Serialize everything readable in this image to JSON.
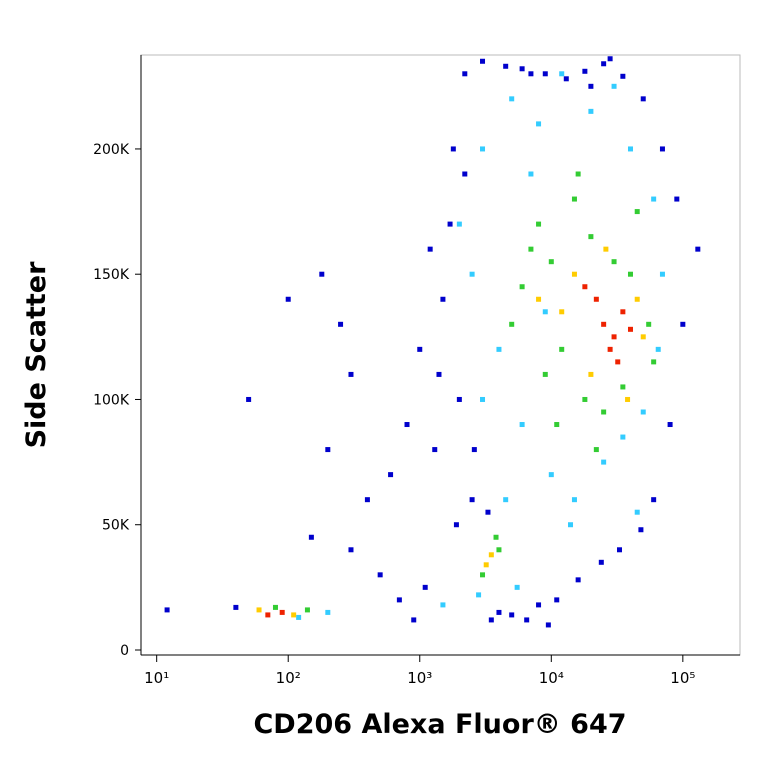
{
  "chart_data": {
    "type": "scatter",
    "x_label": "CD206 Alexa Fluor® 647",
    "y_label": "Side Scatter",
    "x_scale": "log",
    "xlim": [
      7.6,
      272000
    ],
    "xticks": [
      {
        "value": 10,
        "label": "10¹"
      },
      {
        "value": 100,
        "label": "10²"
      },
      {
        "value": 1000,
        "label": "10³"
      },
      {
        "value": 10000,
        "label": "10⁴"
      },
      {
        "value": 100000,
        "label": "10⁵"
      }
    ],
    "ylim": [
      -2000,
      237500
    ],
    "yticks": [
      0,
      {
        "value": 50000,
        "label": "50K"
      },
      {
        "value": 100000,
        "label": "100K"
      },
      {
        "value": 150000,
        "label": "150K"
      },
      {
        "value": 200000,
        "label": "200K"
      }
    ],
    "series": [
      {
        "color": "#0000cc",
        "x": [
          1200,
          1800,
          2200,
          3000,
          4500,
          6000,
          9000,
          13000,
          18000,
          25000,
          35000,
          50000,
          70000,
          90000,
          1000,
          1500,
          800,
          600,
          400,
          300,
          200,
          150,
          100,
          50,
          40,
          12,
          500,
          700,
          900,
          1100,
          1300,
          2000,
          2500,
          4000,
          6500,
          11000,
          16000,
          24000,
          33000,
          48000,
          60000,
          80000,
          100000,
          130000,
          3500,
          5000,
          8000,
          7000,
          20000,
          28000,
          2200,
          1700,
          1400,
          1900,
          2600,
          3300,
          9500,
          300,
          250,
          180
        ],
        "values": [
          160000,
          200000,
          230000,
          235000,
          233000,
          232000,
          230000,
          228000,
          231000,
          234000,
          229000,
          220000,
          200000,
          180000,
          120000,
          140000,
          90000,
          70000,
          60000,
          110000,
          80000,
          45000,
          140000,
          100000,
          17000,
          16000,
          30000,
          20000,
          12000,
          25000,
          80000,
          100000,
          60000,
          15000,
          12000,
          20000,
          28000,
          35000,
          40000,
          48000,
          60000,
          90000,
          130000,
          160000,
          12000,
          14000,
          18000,
          230000,
          225000,
          236000,
          190000,
          170000,
          110000,
          50000,
          80000,
          55000,
          10000,
          40000,
          130000,
          150000
        ]
      },
      {
        "color": "#33ccff",
        "x": [
          3000,
          5000,
          8000,
          12000,
          20000,
          40000,
          60000,
          70000,
          2500,
          4000,
          6000,
          10000,
          15000,
          25000,
          35000,
          50000,
          3000,
          7000,
          9000,
          30000,
          2000,
          4500,
          14000,
          45000,
          65000,
          5500,
          2800,
          1500,
          200,
          120
        ],
        "values": [
          200000,
          220000,
          210000,
          230000,
          215000,
          200000,
          180000,
          150000,
          150000,
          120000,
          90000,
          70000,
          60000,
          75000,
          85000,
          95000,
          100000,
          190000,
          135000,
          225000,
          170000,
          60000,
          50000,
          55000,
          120000,
          25000,
          22000,
          18000,
          15000,
          13000
        ]
      },
      {
        "color": "#33cc33",
        "x": [
          8000,
          10000,
          15000,
          6000,
          20000,
          30000,
          40000,
          55000,
          12000,
          5000,
          9000,
          18000,
          25000,
          35000,
          7000,
          4000,
          3000,
          3800,
          80,
          140,
          60000,
          16000,
          22000,
          11000,
          45000
        ],
        "values": [
          170000,
          155000,
          180000,
          145000,
          165000,
          155000,
          150000,
          130000,
          120000,
          130000,
          110000,
          100000,
          95000,
          105000,
          160000,
          40000,
          30000,
          45000,
          17000,
          16000,
          115000,
          190000,
          80000,
          90000,
          175000
        ]
      },
      {
        "color": "#ffcc00",
        "x": [
          15000,
          20000,
          45000,
          12000,
          50000,
          26000,
          8000,
          3500,
          3200,
          60,
          110,
          38000
        ],
        "values": [
          150000,
          110000,
          140000,
          135000,
          125000,
          160000,
          140000,
          38000,
          34000,
          16000,
          14000,
          100000
        ]
      },
      {
        "color": "#ee2200",
        "x": [
          25000,
          30000,
          35000,
          22000,
          28000,
          40000,
          70,
          90,
          18000,
          32000
        ],
        "values": [
          130000,
          125000,
          135000,
          140000,
          120000,
          128000,
          14000,
          15000,
          145000,
          115000
        ]
      }
    ]
  }
}
